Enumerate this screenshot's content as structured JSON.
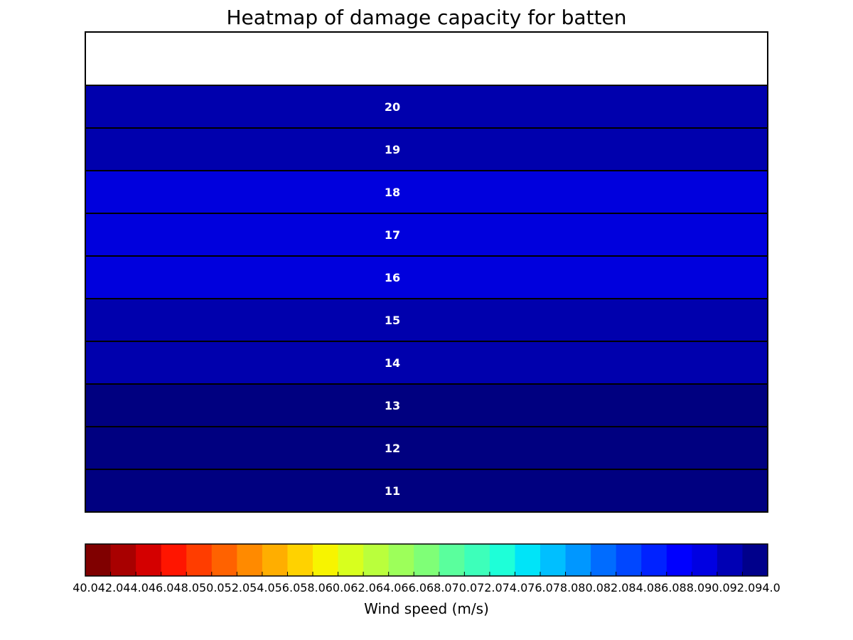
{
  "chart_data": {
    "type": "heatmap",
    "title": "Heatmap of damage capacity for batten",
    "rows": [
      {
        "label": "20",
        "value": 92.5
      },
      {
        "label": "19",
        "value": 92.5
      },
      {
        "label": "18",
        "value": 90.5
      },
      {
        "label": "17",
        "value": 90.5
      },
      {
        "label": "16",
        "value": 90.5
      },
      {
        "label": "15",
        "value": 92.5
      },
      {
        "label": "14",
        "value": 92.5
      },
      {
        "label": "13",
        "value": 93.8
      },
      {
        "label": "12",
        "value": 93.8
      },
      {
        "label": "11",
        "value": 93.8
      }
    ],
    "colorbar": {
      "label": "Wind speed (m/s)",
      "range": [
        40.0,
        94.0
      ],
      "step": 2.0,
      "tick_labels": [
        "40.0",
        "42.0",
        "44.0",
        "46.0",
        "48.0",
        "50.0",
        "52.0",
        "54.0",
        "56.0",
        "58.0",
        "60.0",
        "62.0",
        "64.0",
        "66.0",
        "68.0",
        "70.0",
        "72.0",
        "74.0",
        "76.0",
        "78.0",
        "80.0",
        "82.0",
        "84.0",
        "86.0",
        "88.0",
        "90.0",
        "92.0",
        "94.0"
      ],
      "colors": [
        "#800000",
        "#a80000",
        "#d40000",
        "#ff1500",
        "#ff3d00",
        "#ff6200",
        "#ff8a00",
        "#ffae00",
        "#ffd200",
        "#f7f400",
        "#d8ff1e",
        "#baff3c",
        "#9dff5a",
        "#7fff77",
        "#5aff9d",
        "#3dffba",
        "#1effd8",
        "#00e4f8",
        "#00bfff",
        "#0097ff",
        "#006cff",
        "#0047ff",
        "#0022ff",
        "#0000ff",
        "#0000e2",
        "#0000b4",
        "#00008b"
      ],
      "cell_colors": {
        "90.5": "#0000dd",
        "92.5": "#0000ad",
        "93.8": "#000080"
      }
    }
  }
}
